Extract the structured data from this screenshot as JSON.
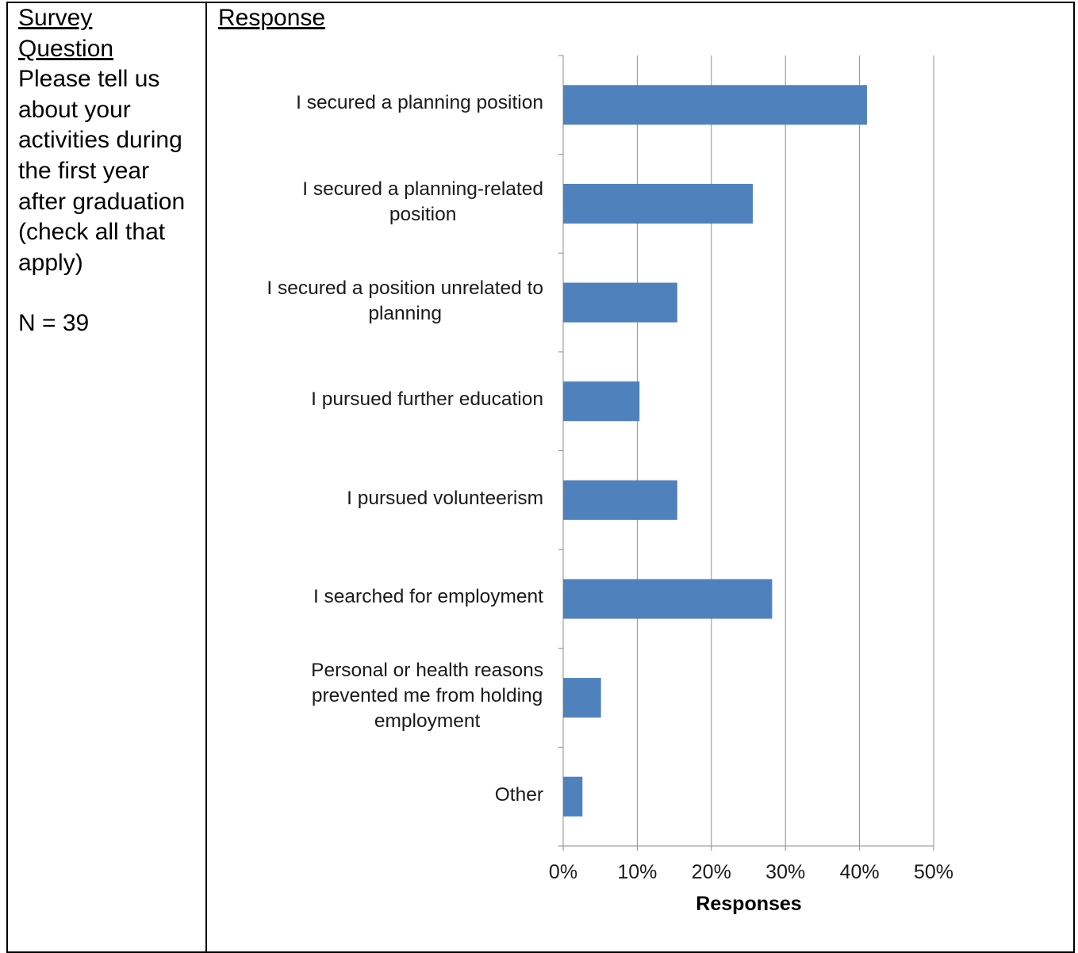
{
  "table": {
    "left_header_line1": "Survey",
    "left_header_line2": "Question",
    "question": "Please tell us about your activities during the first year after graduation (check all that apply)",
    "n_label": "N = 39",
    "right_header": "Response"
  },
  "chart_data": {
    "type": "bar",
    "orientation": "horizontal",
    "categories": [
      "I secured a planning position",
      "I secured a planning-related position",
      "I secured a position unrelated to planning",
      "I pursued further education",
      "I pursued volunteerism",
      "I searched for employment",
      "Personal or health reasons prevented me from holding employment",
      "Other"
    ],
    "category_lines": [
      [
        "I secured a planning position"
      ],
      [
        "I secured a planning-related",
        "position"
      ],
      [
        "I secured a position unrelated to",
        "planning"
      ],
      [
        "I pursued further education"
      ],
      [
        "I pursued volunteerism"
      ],
      [
        "I searched for employment"
      ],
      [
        "Personal or health reasons",
        "prevented me from holding",
        "employment"
      ],
      [
        "Other"
      ]
    ],
    "values": [
      41,
      25.6,
      15.4,
      10.3,
      15.4,
      28.2,
      5.1,
      2.6
    ],
    "xlim": [
      0,
      50
    ],
    "xticks": [
      "0%",
      "10%",
      "20%",
      "30%",
      "40%",
      "50%"
    ],
    "xlabel": "Responses",
    "grid": true,
    "bar_color": "#4f81bd"
  }
}
